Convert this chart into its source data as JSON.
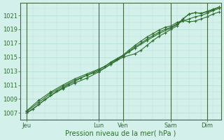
{
  "title": "Pression niveau de la mer( hPa )",
  "ylabel_values": [
    1007,
    1009,
    1011,
    1013,
    1015,
    1017,
    1019,
    1021
  ],
  "ylim": [
    1006.0,
    1022.8
  ],
  "xlim": [
    0,
    100
  ],
  "background_color": "#d4f0ea",
  "grid_color": "#b0ddd5",
  "line_color": "#2d6e2d",
  "markersize": 3.0,
  "x_ticks": [
    3,
    27,
    39,
    51,
    75,
    93
  ],
  "x_labels": [
    "Jeu",
    "Lun",
    "Ven",
    "Sam",
    "Dim",
    ""
  ],
  "x_vlines": [
    3,
    39,
    51,
    75,
    93
  ],
  "line1_x": [
    3,
    6,
    9,
    12,
    15,
    18,
    21,
    24,
    27,
    30,
    33,
    36,
    39,
    42,
    45,
    48,
    51,
    54,
    57,
    60,
    63,
    66,
    69,
    72,
    75,
    78,
    81,
    84,
    87,
    90,
    93,
    96,
    99
  ],
  "line1_y": [
    1007.0,
    1007.5,
    1008.2,
    1008.9,
    1009.5,
    1010.1,
    1010.6,
    1011.1,
    1011.5,
    1012.0,
    1012.4,
    1012.8,
    1013.2,
    1013.7,
    1014.2,
    1014.7,
    1015.2,
    1015.8,
    1016.5,
    1017.0,
    1017.6,
    1018.1,
    1018.6,
    1019.0,
    1019.3,
    1019.8,
    1020.2,
    1020.5,
    1020.8,
    1021.0,
    1021.3,
    1021.7,
    1022.0
  ],
  "line2_x": [
    3,
    9,
    15,
    21,
    27,
    33,
    39,
    45,
    51,
    57,
    63,
    69,
    75,
    78,
    81,
    84,
    87,
    90,
    93,
    96,
    99
  ],
  "line2_y": [
    1007.2,
    1008.5,
    1009.8,
    1010.8,
    1011.7,
    1012.4,
    1013.0,
    1014.0,
    1015.2,
    1016.3,
    1017.4,
    1018.4,
    1019.2,
    1019.7,
    1020.5,
    1021.2,
    1021.4,
    1021.3,
    1021.5,
    1021.8,
    1022.2
  ],
  "line3_x": [
    3,
    9,
    15,
    21,
    27,
    33,
    39,
    42,
    45,
    48,
    51,
    54,
    57,
    60,
    63,
    66,
    69,
    72,
    75,
    78,
    81,
    84,
    87,
    90,
    93,
    96,
    99
  ],
  "line3_y": [
    1007.3,
    1008.8,
    1010.0,
    1011.0,
    1011.9,
    1012.6,
    1013.3,
    1013.7,
    1014.3,
    1014.8,
    1015.3,
    1016.0,
    1016.7,
    1017.3,
    1017.9,
    1018.4,
    1018.9,
    1019.3,
    1019.5,
    1020.0,
    1020.3,
    1020.1,
    1020.2,
    1020.5,
    1020.8,
    1021.2,
    1021.5
  ],
  "line4_x": [
    3,
    9,
    15,
    21,
    27,
    33,
    39,
    45,
    51,
    57,
    60,
    63,
    66,
    69,
    72,
    75,
    78,
    81,
    84,
    87,
    90,
    93,
    96,
    99
  ],
  "line4_y": [
    1007.0,
    1008.2,
    1009.5,
    1010.5,
    1011.3,
    1012.0,
    1012.9,
    1014.0,
    1015.0,
    1015.5,
    1016.0,
    1016.7,
    1017.4,
    1018.0,
    1018.5,
    1019.0,
    1019.5,
    1020.5,
    1021.2,
    1021.4,
    1021.3,
    1021.6,
    1021.9,
    1022.2
  ]
}
